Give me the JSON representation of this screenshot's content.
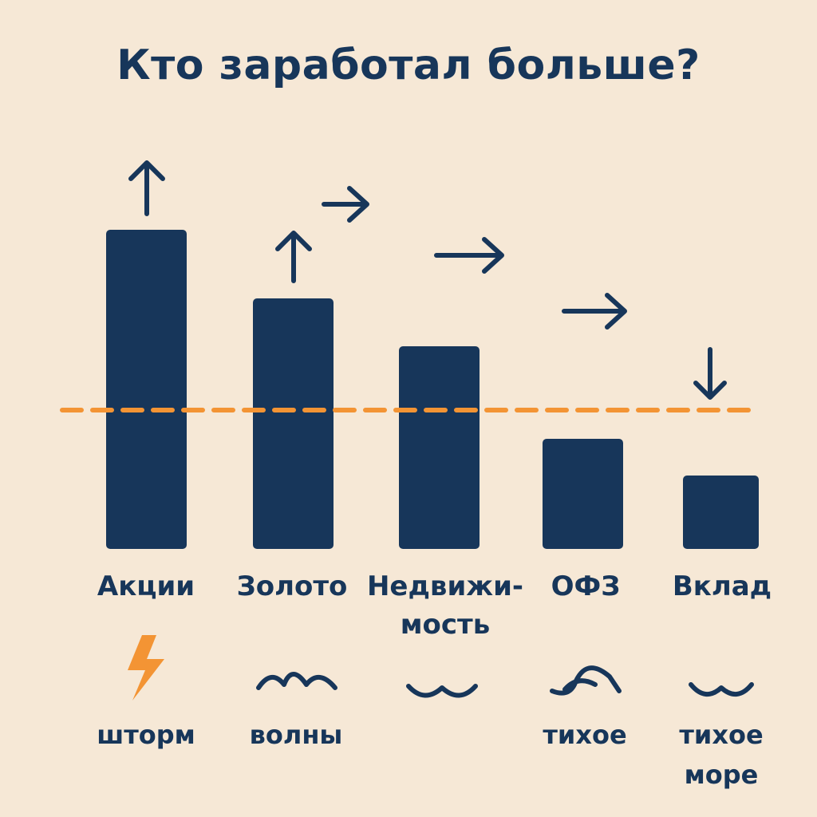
{
  "title": "Кто заработал больше?",
  "colors": {
    "bar": "#17365a",
    "reference": "#f39434",
    "background": "#f6e8d6",
    "storm": "#f39434"
  },
  "chart_data": {
    "type": "bar",
    "title": "Кто заработал больше?",
    "categories": [
      "Акции",
      "Золото",
      "Недвижимость",
      "ОФЗ",
      "Вклад"
    ],
    "category_label_lines": [
      [
        "Акции"
      ],
      [
        "Золото"
      ],
      [
        "Недвижи-",
        "мость"
      ],
      [
        "ОФЗ"
      ],
      [
        "Вклад"
      ]
    ],
    "values": [
      10,
      7.85,
      6.35,
      3.45,
      2.3
    ],
    "reference_line": 4.35,
    "ylim": [
      0,
      10.5
    ],
    "grid": false,
    "trend_arrows": [
      "up",
      "up-right",
      "right",
      "right",
      "down"
    ],
    "moods": [
      {
        "icon": "lightning-icon",
        "label": [
          "шторм"
        ]
      },
      {
        "icon": "waves-icon",
        "label": [
          "волны"
        ]
      },
      {
        "icon": "calm-wave-icon",
        "label": []
      },
      {
        "icon": "wave-crest-icon",
        "label": [
          "тихое"
        ]
      },
      {
        "icon": "calm-wave-icon",
        "label": [
          "тихое",
          "море"
        ]
      }
    ]
  }
}
